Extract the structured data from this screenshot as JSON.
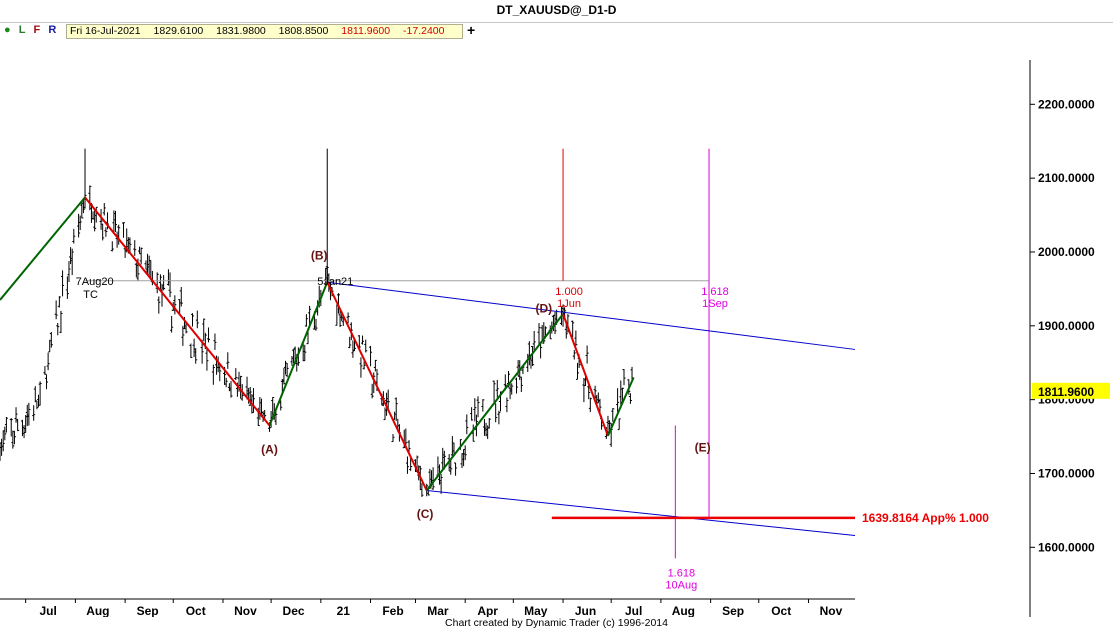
{
  "window": {
    "title": "DT_XAUUSD@_D1-D"
  },
  "toolbar": {
    "buttons": [
      "L",
      "F",
      "R"
    ],
    "quote": {
      "date": "Fri 16-Jul-2021",
      "open": "1829.6100",
      "high": "1831.9800",
      "low": "1808.8500",
      "close": "1811.9600",
      "change": "-17.2400"
    },
    "add_label": "+"
  },
  "footer": {
    "credit": "Chart created by Dynamic Trader  (c)  1996-2014"
  },
  "colors": {
    "impulse_up": "#006400",
    "impulse_down": "#dd0000",
    "channel": "#0000cc",
    "time_line": "#dd00dd",
    "target": "#ee0000",
    "wave_label": "#661111",
    "price_bg": "#ffff00"
  },
  "chart_data": {
    "type": "candlestick",
    "y_axis": {
      "ticks": [
        "1600.0000",
        "1700.0000",
        "1800.0000",
        "1900.0000",
        "2000.0000",
        "2100.0000",
        "2200.0000"
      ],
      "range": [
        1530,
        2260
      ],
      "last_price": "1811.9600"
    },
    "x_axis": {
      "ticks": [
        "Jul",
        "Aug",
        "Sep",
        "Oct",
        "Nov",
        "Dec",
        "21",
        "Feb",
        "Mar",
        "Apr",
        "May",
        "Jun",
        "Jul",
        "Aug",
        "Sep",
        "Oct",
        "Nov"
      ],
      "start": "2020-06-15",
      "end": "2021-11-30"
    },
    "pivots": [
      {
        "date": "2020-08-07",
        "price": 2074
      },
      {
        "date": "2020-11-30",
        "price": 1765
      },
      {
        "date": "2021-01-05",
        "price": 1959
      },
      {
        "date": "2021-03-08",
        "price": 1677
      },
      {
        "date": "2021-06-01",
        "price": 1916
      },
      {
        "date": "2021-06-29",
        "price": 1751
      },
      {
        "date": "2021-07-15",
        "price": 1830
      }
    ],
    "wave_labels": [
      {
        "text": "(A)",
        "date": "2020-11-30",
        "price": 1727
      },
      {
        "text": "(B)",
        "date": "2020-12-31",
        "price": 1990
      },
      {
        "text": "(C)",
        "date": "2021-03-07",
        "price": 1640
      },
      {
        "text": "(D)",
        "date": "2021-05-20",
        "price": 1918
      },
      {
        "text": "(E)",
        "date": "2021-08-27",
        "price": 1730
      }
    ],
    "pivot_tags": [
      {
        "text": "7Aug20",
        "sub": "TC",
        "date": "2020-08-13",
        "price": 1955
      },
      {
        "text": "5Jan21",
        "date": "2021-01-10",
        "price": 1955
      }
    ],
    "projection_lines": [
      {
        "kind": "horizontal",
        "price": 1961,
        "from": "2020-08-07",
        "to": "2021-08-31"
      },
      {
        "kind": "vertical",
        "date": "2020-08-07",
        "top": 2140,
        "bottom": 2074
      },
      {
        "kind": "vertical",
        "date": "2021-01-05",
        "top": 2140,
        "bottom": 1959
      },
      {
        "kind": "vertical",
        "date": "2021-06-01",
        "top": 2140,
        "bottom": 1961,
        "ratio": "1.000",
        "label": "1Jun"
      },
      {
        "kind": "vertical",
        "date": "2021-08-31",
        "top": 2140,
        "bottom": 1640,
        "ratio": "1.618",
        "label": "1Sep"
      },
      {
        "kind": "vertical",
        "date": "2021-08-10",
        "top": 1765,
        "bottom": 1585,
        "ratio": "1.618",
        "label": "10Aug"
      }
    ],
    "channel_lines": [
      {
        "from": {
          "date": "2021-01-05",
          "price": 1959
        },
        "to": {
          "date": "2021-11-30",
          "price": 1868
        }
      },
      {
        "from": {
          "date": "2021-03-08",
          "price": 1677
        },
        "to": {
          "date": "2021-11-30",
          "price": 1616
        }
      }
    ],
    "target": {
      "price": 1639.8164,
      "label": "1639.8164 App% 1.000",
      "from": "2021-05-25",
      "to": "2021-11-30"
    }
  }
}
